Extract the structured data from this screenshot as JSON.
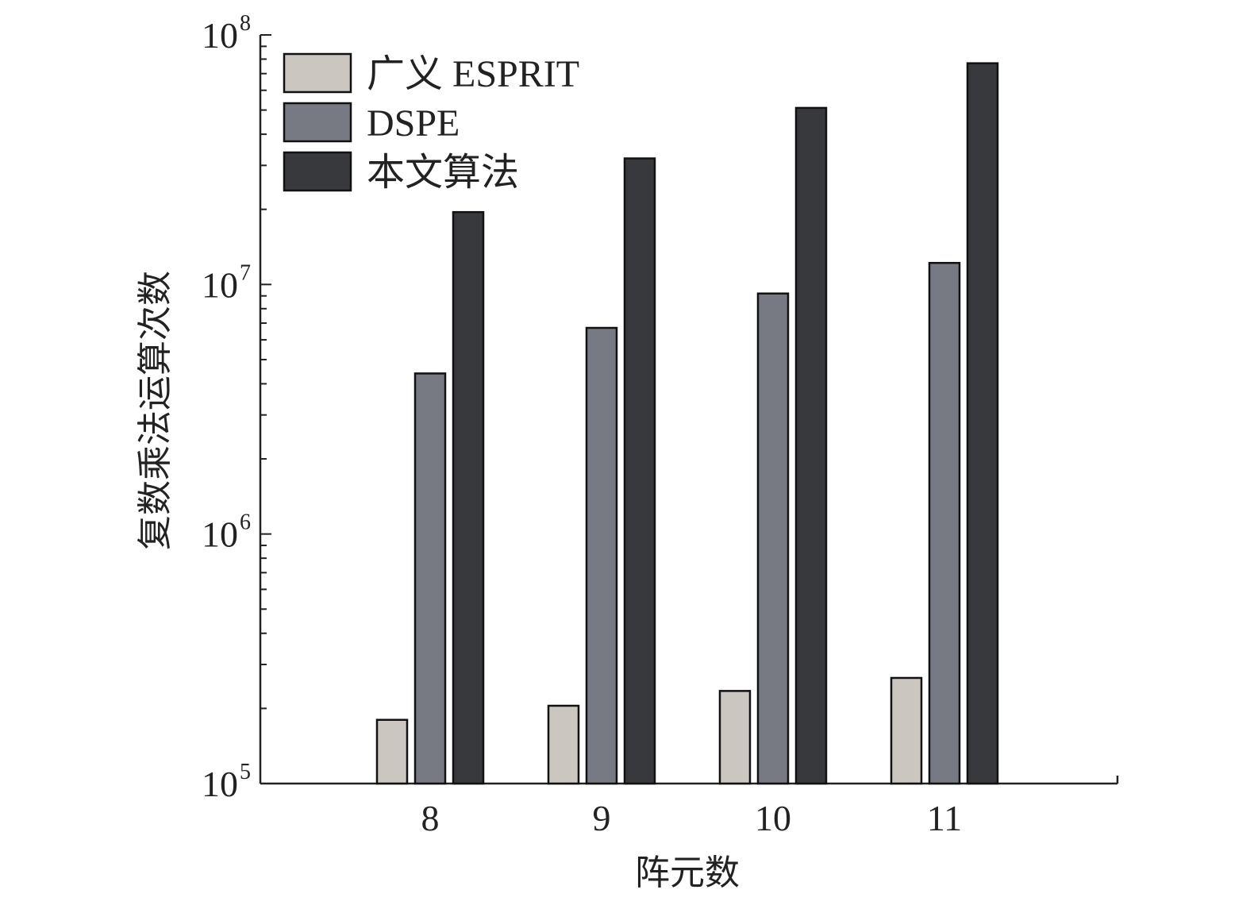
{
  "chart_data": {
    "type": "bar",
    "title": "",
    "xlabel": "阵元数",
    "ylabel": "复数乘法运算次数",
    "y_scale": "log",
    "ylim": [
      100000,
      100000000
    ],
    "categories": [
      "8",
      "9",
      "10",
      "11"
    ],
    "y_ticks": [
      {
        "base": "10",
        "exp": "5"
      },
      {
        "base": "10",
        "exp": "6"
      },
      {
        "base": "10",
        "exp": "7"
      },
      {
        "base": "10",
        "exp": "8"
      }
    ],
    "legend_position": "top-left",
    "grid": false,
    "series": [
      {
        "name": "广义 ESPRIT",
        "color": "#cbc6c0",
        "values": [
          180000,
          205000,
          235000,
          265000
        ]
      },
      {
        "name": "DSPE",
        "color": "#777a82",
        "values": [
          4400000,
          6700000,
          9200000,
          12200000
        ]
      },
      {
        "name": "本文算法",
        "color": "#38393d",
        "values": [
          19500000,
          32000000,
          51000000,
          77000000
        ]
      }
    ]
  }
}
